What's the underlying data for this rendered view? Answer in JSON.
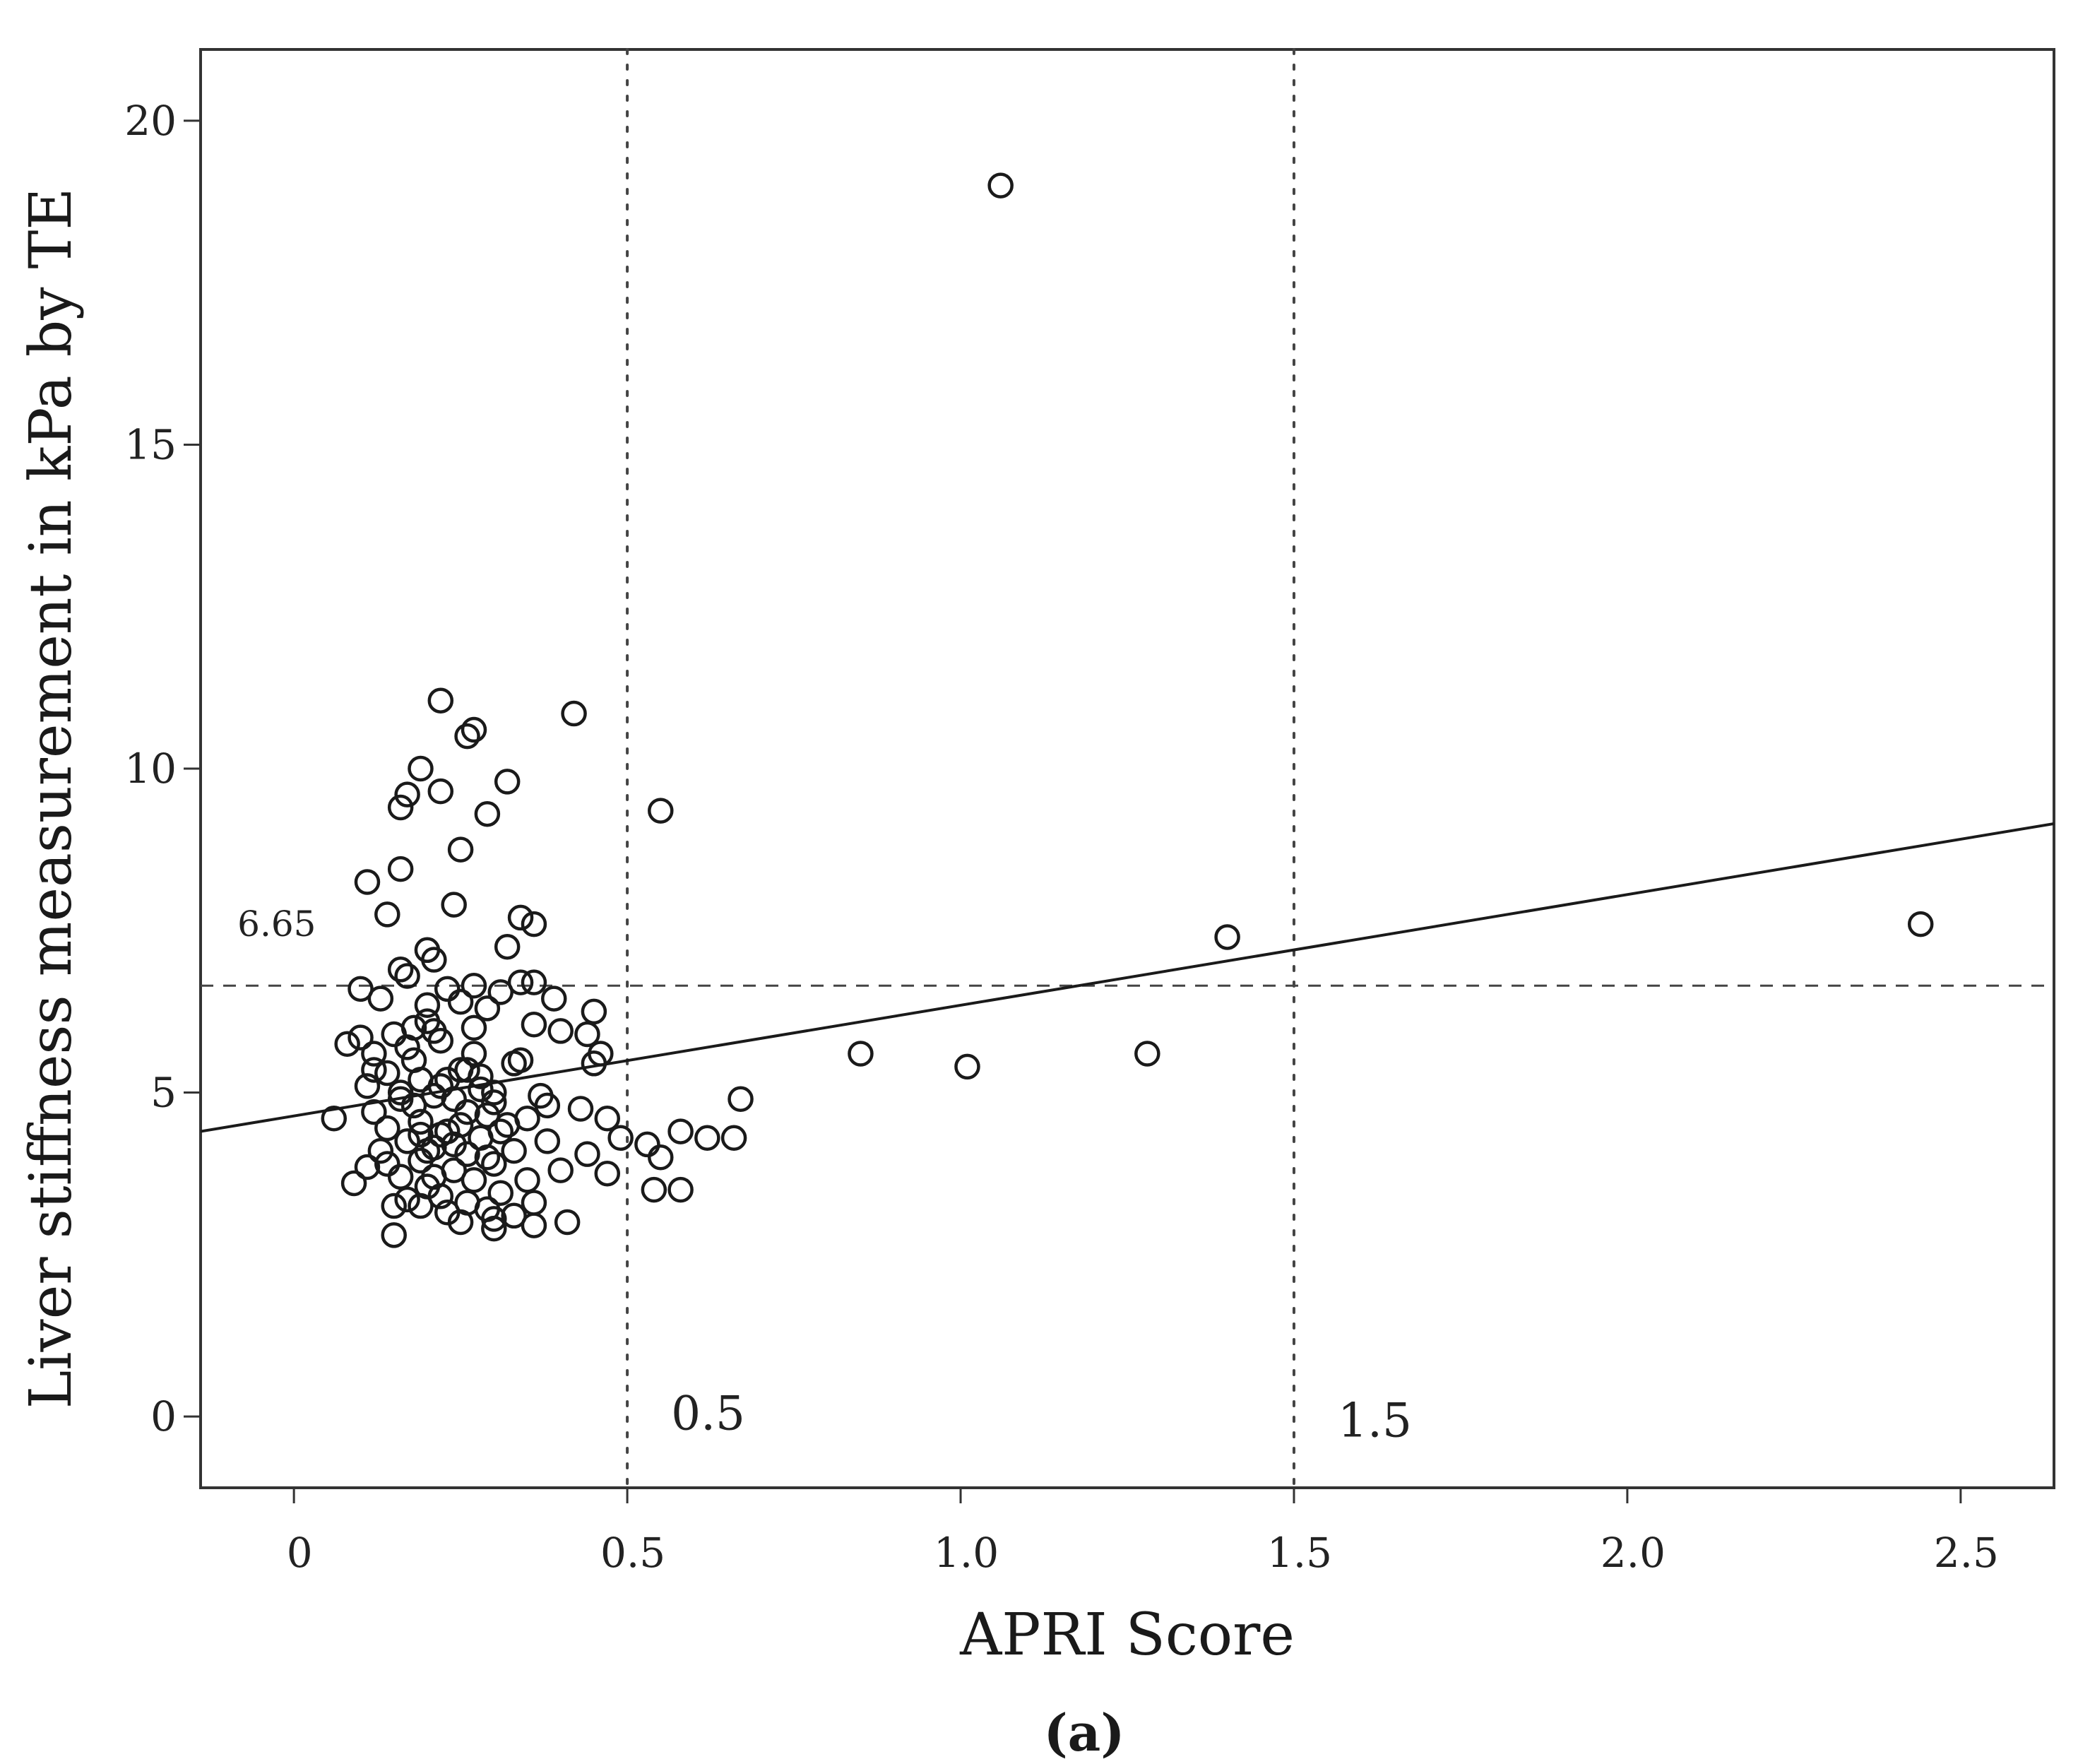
{
  "chart_data": {
    "type": "scatter",
    "title": "",
    "xlabel": "APRI Score",
    "ylabel": "Liver stiffness measurement in kPa by TE",
    "xlim": [
      -0.14,
      2.64
    ],
    "ylim": [
      -1.1,
      21.1
    ],
    "x_ticks": [
      0,
      0.5,
      1.0,
      1.5,
      2.0,
      2.5
    ],
    "x_tick_labels": [
      "0",
      "0.5",
      "1.0",
      "1.5",
      "2.0",
      "2.5"
    ],
    "y_ticks": [
      0,
      5,
      10,
      15,
      20
    ],
    "y_tick_labels": [
      "0",
      "5",
      "10",
      "15",
      "20"
    ],
    "grid": false,
    "reference_lines": [
      {
        "orientation": "horizontal",
        "value": 6.65,
        "style": "dashed",
        "label": "6.65"
      },
      {
        "orientation": "vertical",
        "value": 0.5,
        "style": "dotted",
        "label": "0.5"
      },
      {
        "orientation": "vertical",
        "value": 1.5,
        "style": "dotted",
        "label": "1.5"
      }
    ],
    "fit_line": {
      "x": [
        -0.14,
        2.64
      ],
      "y": [
        4.4,
        9.15
      ]
    },
    "panel_label": "(a)",
    "points": [
      [
        1.06,
        19.0
      ],
      [
        0.55,
        9.35
      ],
      [
        0.42,
        10.85
      ],
      [
        0.22,
        11.05
      ],
      [
        0.27,
        10.6
      ],
      [
        0.26,
        10.5
      ],
      [
        0.19,
        10.0
      ],
      [
        0.32,
        9.8
      ],
      [
        0.22,
        9.65
      ],
      [
        0.17,
        9.6
      ],
      [
        0.16,
        9.4
      ],
      [
        0.29,
        9.3
      ],
      [
        0.25,
        8.75
      ],
      [
        0.16,
        8.45
      ],
      [
        0.11,
        8.25
      ],
      [
        0.24,
        7.9
      ],
      [
        0.14,
        7.75
      ],
      [
        0.34,
        7.7
      ],
      [
        0.36,
        7.6
      ],
      [
        0.32,
        7.25
      ],
      [
        0.2,
        7.2
      ],
      [
        0.21,
        7.05
      ],
      [
        0.16,
        6.9
      ],
      [
        0.17,
        6.8
      ],
      [
        0.36,
        6.7
      ],
      [
        0.34,
        6.7
      ],
      [
        0.23,
        6.6
      ],
      [
        0.27,
        6.65
      ],
      [
        0.31,
        6.55
      ],
      [
        0.1,
        6.6
      ],
      [
        0.13,
        6.45
      ],
      [
        0.39,
        6.45
      ],
      [
        0.25,
        6.4
      ],
      [
        0.29,
        6.3
      ],
      [
        0.45,
        6.25
      ],
      [
        0.2,
        6.1
      ],
      [
        0.36,
        6.05
      ],
      [
        0.18,
        6.0
      ],
      [
        0.21,
        5.95
      ],
      [
        0.44,
        5.9
      ],
      [
        0.4,
        5.95
      ],
      [
        0.1,
        5.85
      ],
      [
        0.08,
        5.75
      ],
      [
        0.17,
        5.7
      ],
      [
        0.12,
        5.6
      ],
      [
        0.46,
        5.6
      ],
      [
        0.45,
        5.45
      ],
      [
        0.33,
        5.45
      ],
      [
        0.26,
        5.35
      ],
      [
        0.14,
        5.3
      ],
      [
        0.23,
        5.2
      ],
      [
        0.19,
        5.2
      ],
      [
        0.11,
        5.1
      ],
      [
        0.28,
        5.05
      ],
      [
        0.16,
        5.0
      ],
      [
        0.21,
        4.95
      ],
      [
        0.24,
        4.9
      ],
      [
        0.3,
        4.85
      ],
      [
        0.67,
        4.9
      ],
      [
        0.38,
        4.8
      ],
      [
        0.43,
        4.75
      ],
      [
        0.12,
        4.7
      ],
      [
        0.29,
        4.65
      ],
      [
        0.35,
        4.6
      ],
      [
        0.47,
        4.6
      ],
      [
        0.06,
        4.6
      ],
      [
        0.19,
        4.55
      ],
      [
        0.25,
        4.5
      ],
      [
        0.14,
        4.45
      ],
      [
        0.31,
        4.4
      ],
      [
        0.58,
        4.4
      ],
      [
        0.22,
        4.35
      ],
      [
        0.28,
        4.3
      ],
      [
        0.49,
        4.3
      ],
      [
        0.62,
        4.3
      ],
      [
        0.66,
        4.3
      ],
      [
        0.17,
        4.25
      ],
      [
        0.38,
        4.25
      ],
      [
        0.53,
        4.2
      ],
      [
        0.21,
        4.15
      ],
      [
        0.13,
        4.1
      ],
      [
        0.33,
        4.1
      ],
      [
        0.26,
        4.05
      ],
      [
        0.44,
        4.05
      ],
      [
        0.55,
        4.0
      ],
      [
        0.19,
        3.95
      ],
      [
        0.3,
        3.9
      ],
      [
        0.11,
        3.85
      ],
      [
        0.24,
        3.8
      ],
      [
        0.4,
        3.8
      ],
      [
        0.47,
        3.75
      ],
      [
        0.16,
        3.7
      ],
      [
        0.27,
        3.65
      ],
      [
        0.35,
        3.65
      ],
      [
        0.09,
        3.6
      ],
      [
        0.2,
        3.55
      ],
      [
        0.54,
        3.5
      ],
      [
        0.58,
        3.5
      ],
      [
        0.31,
        3.45
      ],
      [
        0.22,
        3.4
      ],
      [
        0.17,
        3.35
      ],
      [
        0.26,
        3.3
      ],
      [
        0.36,
        3.3
      ],
      [
        0.19,
        3.25
      ],
      [
        0.15,
        3.25
      ],
      [
        0.29,
        3.2
      ],
      [
        0.23,
        3.15
      ],
      [
        0.33,
        3.1
      ],
      [
        0.3,
        3.05
      ],
      [
        0.25,
        3.0
      ],
      [
        0.41,
        3.0
      ],
      [
        0.36,
        2.95
      ],
      [
        0.3,
        2.9
      ],
      [
        0.15,
        2.8
      ],
      [
        0.85,
        5.6
      ],
      [
        1.01,
        5.4
      ],
      [
        1.28,
        5.6
      ],
      [
        1.4,
        7.4
      ],
      [
        2.44,
        7.6
      ],
      [
        0.18,
        5.5
      ],
      [
        0.22,
        5.8
      ],
      [
        0.27,
        5.6
      ],
      [
        0.3,
        5.0
      ],
      [
        0.18,
        4.8
      ],
      [
        0.23,
        4.4
      ],
      [
        0.2,
        4.1
      ],
      [
        0.26,
        4.7
      ],
      [
        0.32,
        4.5
      ],
      [
        0.15,
        5.9
      ],
      [
        0.2,
        6.35
      ],
      [
        0.28,
        5.25
      ],
      [
        0.24,
        4.2
      ],
      [
        0.16,
        4.9
      ],
      [
        0.21,
        3.7
      ],
      [
        0.34,
        5.5
      ],
      [
        0.12,
        5.35
      ],
      [
        0.27,
        6.0
      ],
      [
        0.37,
        4.95
      ],
      [
        0.19,
        4.35
      ],
      [
        0.25,
        5.35
      ],
      [
        0.29,
        4.0
      ],
      [
        0.14,
        3.9
      ],
      [
        0.22,
        5.1
      ]
    ]
  }
}
